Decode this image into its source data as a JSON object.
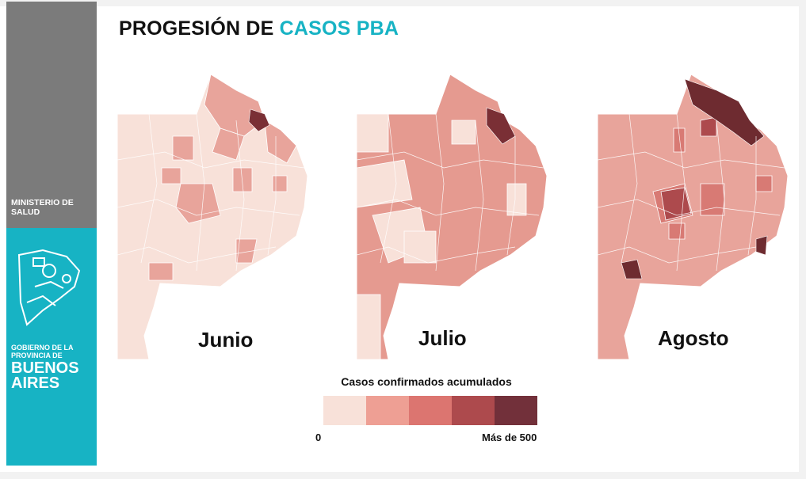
{
  "title": {
    "main": "PROGESIÓN DE ",
    "accent": "CASOS PBA"
  },
  "sidebar": {
    "ministry": "MINISTERIO DE SALUD",
    "gov_line1": "GOBIERNO DE LA",
    "gov_line2": "PROVINCIA DE",
    "ba_line1": "BUENOS",
    "ba_line2": "AIRES"
  },
  "maps": [
    {
      "label": "Junio",
      "base": "#f8e1d9",
      "mid": "#e8a49b",
      "dark": "#7a2f35"
    },
    {
      "label": "Julio",
      "base": "#f8e1d9",
      "mid": "#e59a90",
      "dark": "#7a2f35"
    },
    {
      "label": "Agosto",
      "base": "#e8a49b",
      "mid": "#d87a74",
      "dark": "#6e2b30"
    }
  ],
  "legend": {
    "title": "Casos confirmados acumulados",
    "min_label": "0",
    "max_label": "Más de 500",
    "colors": [
      "#f8e1d9",
      "#ee9f94",
      "#dc7570",
      "#ad4a4d",
      "#72303a"
    ]
  },
  "colors": {
    "sidebar_gray": "#7b7b7b",
    "sidebar_teal": "#17b3c4",
    "accent": "#17b3c4"
  }
}
